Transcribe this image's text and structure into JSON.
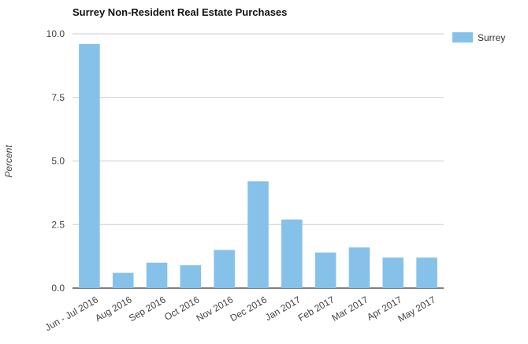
{
  "chart_data": {
    "type": "bar",
    "title": "Surrey Non-Resident Real Estate Purchases",
    "xlabel": "",
    "ylabel": "Percent",
    "categories": [
      "Jun - Jul 2016",
      "Aug 2016",
      "Sep 2016",
      "Oct 2016",
      "Nov 2016",
      "Dec 2016",
      "Jan 2017",
      "Feb 2017",
      "Mar 2017",
      "Apr 2017",
      "May 2017"
    ],
    "series": [
      {
        "name": "Surrey",
        "values": [
          9.6,
          0.6,
          1.0,
          0.9,
          1.5,
          4.2,
          2.7,
          1.4,
          1.6,
          1.2,
          1.2
        ],
        "color": "#86c1e9"
      }
    ],
    "ylim": [
      0,
      10
    ],
    "yticks": [
      "0.0",
      "2.5",
      "5.0",
      "7.5",
      "10.0"
    ],
    "grid": true,
    "legend": "top-right",
    "colors": {
      "grid": "#cccccc",
      "axis": "#333333",
      "text": "#444444",
      "title": "#111111"
    }
  }
}
